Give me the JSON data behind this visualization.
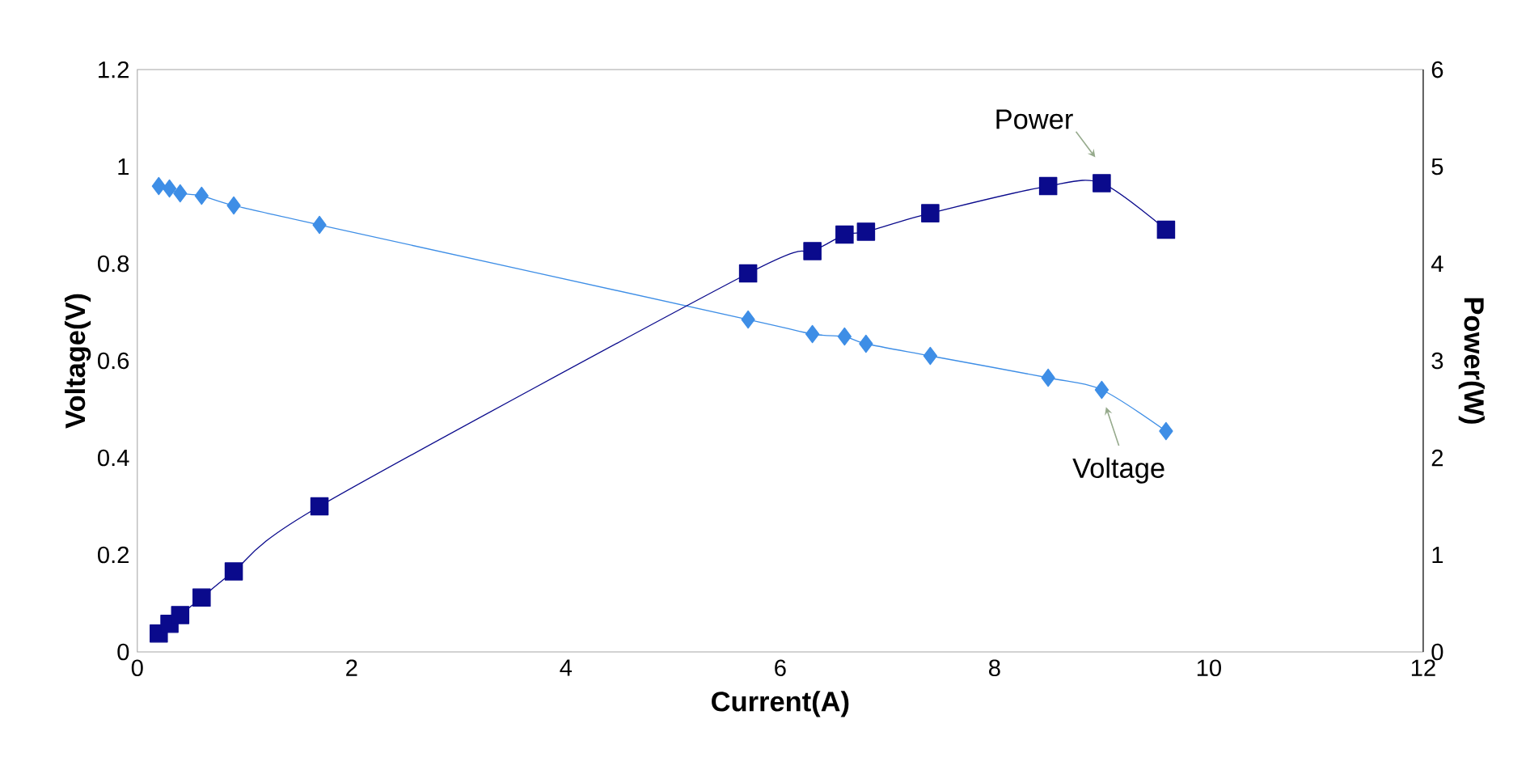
{
  "chart_data": {
    "type": "line",
    "xlabel": "Current(A)",
    "ylabel": "Voltage(V)",
    "y2label": "Power(W)",
    "xlim": [
      0,
      12
    ],
    "xticks": [
      0,
      2,
      4,
      6,
      8,
      10,
      12
    ],
    "ylim": [
      0,
      1.2
    ],
    "yticks": [
      0,
      0.2,
      0.4,
      0.6,
      0.8,
      1,
      1.2
    ],
    "y2lim": [
      0,
      6
    ],
    "y2ticks": [
      0,
      1,
      2,
      3,
      4,
      5,
      6
    ],
    "grid": false,
    "legend": false,
    "series": [
      {
        "name": "Voltage",
        "color": "#3e8ee6",
        "marker": "diamond",
        "x": [
          0.2,
          0.3,
          0.4,
          0.6,
          0.9,
          1.7,
          5.7,
          6.3,
          6.6,
          6.8,
          7.4,
          8.5,
          9.0,
          9.6
        ],
        "values": [
          0.96,
          0.955,
          0.945,
          0.94,
          0.92,
          0.88,
          0.685,
          0.655,
          0.65,
          0.635,
          0.61,
          0.565,
          0.54,
          0.455
        ]
      },
      {
        "name": "Power",
        "color": "#0a0a8c",
        "marker": "square",
        "axis": "y2",
        "x": [
          0.2,
          0.3,
          0.4,
          0.6,
          0.9,
          1.7,
          5.7,
          6.3,
          6.6,
          6.8,
          7.4,
          8.5,
          9.0,
          9.6
        ],
        "values": [
          0.19,
          0.29,
          0.38,
          0.56,
          0.83,
          1.5,
          3.9,
          4.13,
          4.3,
          4.33,
          4.52,
          4.8,
          4.83,
          4.35
        ]
      }
    ]
  }
}
